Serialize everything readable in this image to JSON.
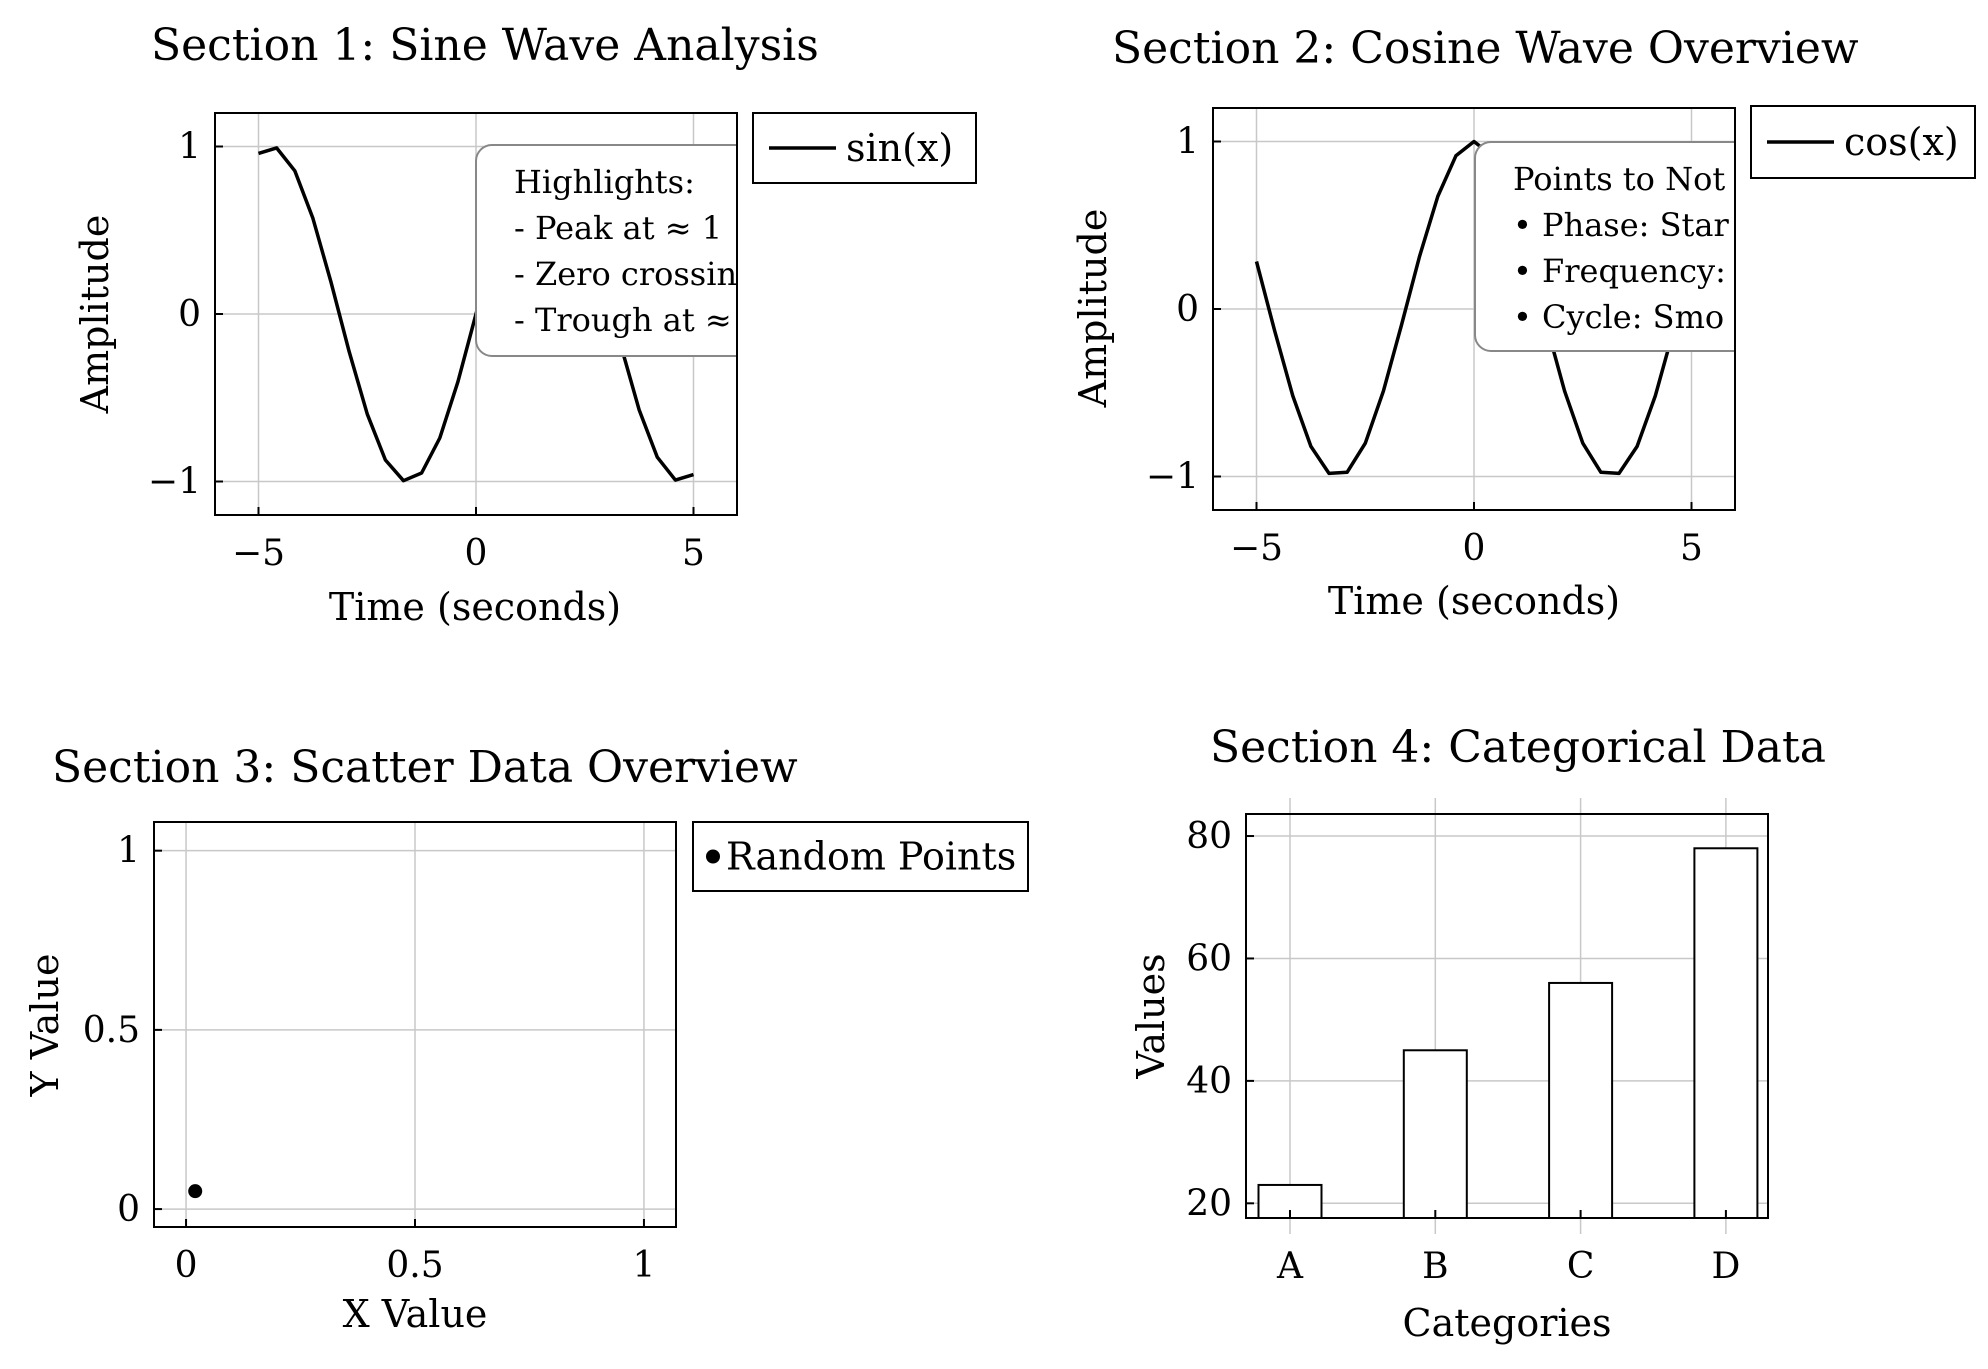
{
  "chart_data": [
    {
      "type": "line",
      "title": "Section 1: Sine Wave Analysis",
      "xlabel": "Time (seconds)",
      "ylabel": "Amplitude",
      "xlim": [
        -6,
        6
      ],
      "ylim": [
        -1.2,
        1.2
      ],
      "xticks": [
        -5,
        0,
        5
      ],
      "xtick_labels": [
        "−5",
        "0",
        "5"
      ],
      "yticks": [
        -1,
        0,
        1
      ],
      "ytick_labels": [
        "−1",
        "0",
        "1"
      ],
      "grid": true,
      "legend_position": "outside-right",
      "series": [
        {
          "name": "sin(x)",
          "function": "sin",
          "x_range": [
            -5,
            5
          ],
          "samples": 25
        }
      ],
      "annotation": {
        "lines": [
          "Highlights:",
          "- Peak at ≈ 1",
          "- Zero crossin",
          "- Trough at ≈"
        ]
      }
    },
    {
      "type": "line",
      "title": "Section 2: Cosine Wave Overview",
      "xlabel": "Time (seconds)",
      "ylabel": "Amplitude",
      "xlim": [
        -6,
        6
      ],
      "ylim": [
        -1.2,
        1.2
      ],
      "xticks": [
        -5,
        0,
        5
      ],
      "xtick_labels": [
        "−5",
        "0",
        "5"
      ],
      "yticks": [
        -1,
        0,
        1
      ],
      "ytick_labels": [
        "−1",
        "0",
        "1"
      ],
      "grid": true,
      "legend_position": "outside-right",
      "series": [
        {
          "name": "cos(x)",
          "function": "cos",
          "x_range": [
            -5,
            5
          ],
          "samples": 25
        }
      ],
      "annotation": {
        "lines": [
          "Points to Not",
          "• Phase: Star",
          "• Frequency:",
          "• Cycle: Smo"
        ]
      }
    },
    {
      "type": "scatter",
      "title": "Section 3: Scatter Data Overview",
      "xlabel": "X Value",
      "ylabel": "Y Value",
      "xlim": [
        -0.07,
        1.07
      ],
      "ylim": [
        -0.05,
        1.08
      ],
      "xticks": [
        0,
        0.5,
        1
      ],
      "xtick_labels": [
        "0",
        "0.5",
        "1"
      ],
      "yticks": [
        0,
        0.5,
        1
      ],
      "ytick_labels": [
        "0",
        "0.5",
        "1"
      ],
      "grid": true,
      "legend_position": "outside-right",
      "series": [
        {
          "name": "Random Points",
          "points": [
            [
              0.02,
              0.05
            ]
          ]
        }
      ]
    },
    {
      "type": "bar",
      "title": "Section 4: Categorical Data",
      "xlabel": "Categories",
      "ylabel": "Values",
      "categories": [
        "A",
        "B",
        "C",
        "D"
      ],
      "values": [
        23,
        45,
        56,
        78
      ],
      "ylim": [
        17.6,
        83.6
      ],
      "yticks": [
        20,
        40,
        60,
        80
      ],
      "ytick_labels": [
        "20",
        "40",
        "60",
        "80"
      ],
      "grid": true
    }
  ]
}
